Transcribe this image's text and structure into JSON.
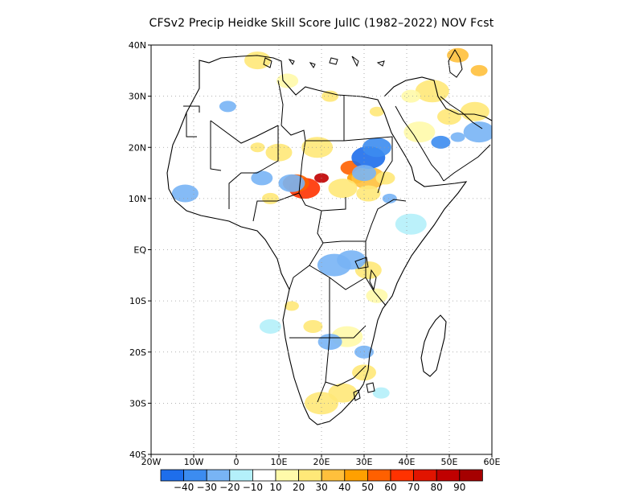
{
  "title": "CFSv2 Precip Heidke Skill Score JulIC (1982–2022) NOV Fcst",
  "map": {
    "lon_range": [
      -20,
      60
    ],
    "lat_range": [
      -40,
      40
    ],
    "lon_ticks": [
      {
        "value": -20,
        "label": "20W"
      },
      {
        "value": -10,
        "label": "10W"
      },
      {
        "value": 0,
        "label": "0"
      },
      {
        "value": 10,
        "label": "10E"
      },
      {
        "value": 20,
        "label": "20E"
      },
      {
        "value": 30,
        "label": "30E"
      },
      {
        "value": 40,
        "label": "40E"
      },
      {
        "value": 50,
        "label": "50E"
      },
      {
        "value": 60,
        "label": "60E"
      }
    ],
    "lat_ticks": [
      {
        "value": 40,
        "label": "40N"
      },
      {
        "value": 30,
        "label": "30N"
      },
      {
        "value": 20,
        "label": "20N"
      },
      {
        "value": 10,
        "label": "10N"
      },
      {
        "value": 0,
        "label": "EQ"
      },
      {
        "value": -10,
        "label": "10S"
      },
      {
        "value": -20,
        "label": "20S"
      },
      {
        "value": -30,
        "label": "30S"
      },
      {
        "value": -40,
        "label": "40S"
      }
    ],
    "grid": true,
    "coastline_color": "#000000",
    "skill_blobs": [
      {
        "lon": 20,
        "lat": 14,
        "level": 80
      },
      {
        "lon": 16,
        "lat": 12,
        "level": 60
      },
      {
        "lon": 14,
        "lat": 13,
        "level": 50
      },
      {
        "lon": 27,
        "lat": 16,
        "level": 50
      },
      {
        "lon": 28,
        "lat": 14,
        "level": 40
      },
      {
        "lon": 31,
        "lat": 14,
        "level": 30
      },
      {
        "lon": 25,
        "lat": 12,
        "level": 20
      },
      {
        "lon": 31,
        "lat": 11,
        "level": 20
      },
      {
        "lon": 35,
        "lat": 14,
        "level": 20
      },
      {
        "lon": 5,
        "lat": 20,
        "level": 20
      },
      {
        "lon": 19,
        "lat": 20,
        "level": 20
      },
      {
        "lon": 10,
        "lat": 19,
        "level": 20
      },
      {
        "lon": 52,
        "lat": 38,
        "level": 30
      },
      {
        "lon": 57,
        "lat": 35,
        "level": 30
      },
      {
        "lon": 46,
        "lat": 31,
        "level": 20
      },
      {
        "lon": 56,
        "lat": 27,
        "level": 20
      },
      {
        "lon": 50,
        "lat": 26,
        "level": 20
      },
      {
        "lon": 41,
        "lat": 30,
        "level": 10
      },
      {
        "lon": 33,
        "lat": 27,
        "level": 20
      },
      {
        "lon": 43,
        "lat": 23,
        "level": 10
      },
      {
        "lon": 5,
        "lat": 37,
        "level": 20
      },
      {
        "lon": 12,
        "lat": 33,
        "level": 10
      },
      {
        "lon": 22,
        "lat": 30,
        "level": 20
      },
      {
        "lon": 20,
        "lat": -30,
        "level": 20
      },
      {
        "lon": 25,
        "lat": -28,
        "level": 20
      },
      {
        "lon": 30,
        "lat": -24,
        "level": 20
      },
      {
        "lon": 18,
        "lat": -15,
        "level": 20
      },
      {
        "lon": 13,
        "lat": -11,
        "level": 20
      },
      {
        "lon": 26,
        "lat": -17,
        "level": 10
      },
      {
        "lon": 31,
        "lat": -4,
        "level": 20
      },
      {
        "lon": 33,
        "lat": -9,
        "level": 10
      },
      {
        "lon": 8,
        "lat": 10,
        "level": 20
      },
      {
        "lon": 31,
        "lat": 18,
        "level": -40
      },
      {
        "lon": 33,
        "lat": 20,
        "level": -30
      },
      {
        "lon": 30,
        "lat": 15,
        "level": -20
      },
      {
        "lon": 48,
        "lat": 21,
        "level": -30
      },
      {
        "lon": 52,
        "lat": 22,
        "level": -20
      },
      {
        "lon": 57,
        "lat": 23,
        "level": -20
      },
      {
        "lon": 13,
        "lat": 13,
        "level": -20
      },
      {
        "lon": 6,
        "lat": 14,
        "level": -20
      },
      {
        "lon": -2,
        "lat": 28,
        "level": -20
      },
      {
        "lon": 23,
        "lat": -3,
        "level": -20
      },
      {
        "lon": 27,
        "lat": -2,
        "level": -20
      },
      {
        "lon": 22,
        "lat": -18,
        "level": -20
      },
      {
        "lon": 30,
        "lat": -20,
        "level": -20
      },
      {
        "lon": 36,
        "lat": 10,
        "level": -20
      },
      {
        "lon": 41,
        "lat": 5,
        "level": -10
      },
      {
        "lon": -12,
        "lat": 11,
        "level": -20
      },
      {
        "lon": 8,
        "lat": -15,
        "level": -10
      },
      {
        "lon": 34,
        "lat": -28,
        "level": -10
      }
    ]
  },
  "colorbar": {
    "colors": [
      "#1e6eeb",
      "#3c8cf0",
      "#78b4f5",
      "#b4f0fa",
      "#ffffff",
      "#fffaaa",
      "#ffe878",
      "#ffc03c",
      "#ffa000",
      "#ff6000",
      "#ff3200",
      "#e11400",
      "#c00000",
      "#a50000"
    ],
    "labels": [
      "−40",
      "−30",
      "−20",
      "−10",
      "10",
      "20",
      "30",
      "40",
      "50",
      "60",
      "70",
      "80",
      "90"
    ]
  }
}
